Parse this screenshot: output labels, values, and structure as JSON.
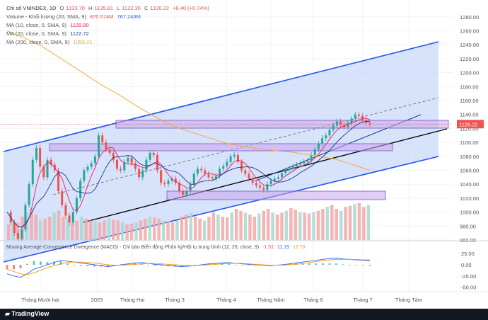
{
  "header": {
    "symbol": "Chỉ số VNINDEX, 1D",
    "o_label": "O",
    "o": "1133.70",
    "h_label": "H",
    "h": "1135.81",
    "l_label": "L",
    "l": "1122.35",
    "c_label": "C",
    "c": "1126.22",
    "change": "+8.40 (+0.74%)"
  },
  "indicators": {
    "volume": {
      "label": "Volume - Khối lượng (20, SMA, 9)",
      "v1": "870.574M",
      "v2": "767.243M"
    },
    "ma10": {
      "label": "MA (10, close, 0, SMA, 9)",
      "value": "1129.80"
    },
    "ma20": {
      "label": "MA (20, close, 0, SMA, 9)",
      "value": "1122.72"
    },
    "ma200": {
      "label": "MA (200, close, 0, SMA, 9)",
      "value": "1059.21"
    }
  },
  "macd": {
    "label": "Moving Average Convergence Divergence (MACD) - Chỉ báo Biến động Phân kỳ/Hội tụ trung bình (12, 26, close, 9)",
    "v1": "-1.51",
    "v2": "11.19",
    "v3": "12.70"
  },
  "branding": {
    "text": "TradingView"
  },
  "colors": {
    "up": "#26a69a",
    "down": "#ef5350",
    "ma10": "#e91e63",
    "ma20": "#1e3a8a",
    "ma200": "#f7a93b",
    "channel": "#1e56f0",
    "zone": "#c9a6ec"
  },
  "chart_data": {
    "type": "candlestick",
    "title": "Chỉ số VNINDEX, 1D",
    "ylim": [
      960,
      1290
    ],
    "y_ticks": [
      "960.00",
      "980.00",
      "1000.00",
      "1020.00",
      "1040.00",
      "1060.00",
      "1080.00",
      "1100.00",
      "1120.00",
      "1140.00",
      "1160.00",
      "1180.00",
      "1200.00",
      "1220.00",
      "1240.00",
      "1260.00",
      "1280.00"
    ],
    "x_ticks": [
      "Tháng Mười hai",
      "2023",
      "Tháng Hai",
      "Tháng 3",
      "Tháng 4",
      "Tháng Năm",
      "Tháng 6",
      "Tháng 7",
      "Tháng Tám"
    ],
    "last_price": "1126.22",
    "close_path": [
      1000,
      985,
      970,
      962,
      975,
      1010,
      1040,
      1075,
      1092,
      1065,
      1050,
      1075,
      1068,
      1060,
      1030,
      1010,
      995,
      985,
      1000,
      1020,
      1045,
      1060,
      1065,
      1070,
      1080,
      1110,
      1100,
      1090,
      1085,
      1075,
      1062,
      1060,
      1072,
      1078,
      1070,
      1062,
      1050,
      1060,
      1075,
      1085,
      1082,
      1060,
      1042,
      1040,
      1045,
      1048,
      1042,
      1030,
      1025,
      1030,
      1040,
      1055,
      1062,
      1060,
      1055,
      1050,
      1048,
      1052,
      1062,
      1066,
      1072,
      1080,
      1082,
      1072,
      1060,
      1055,
      1048,
      1042,
      1038,
      1035,
      1032,
      1040,
      1045,
      1048,
      1050,
      1056,
      1060,
      1062,
      1066,
      1068,
      1070,
      1072,
      1074,
      1082,
      1090,
      1098,
      1106,
      1110,
      1118,
      1124,
      1130,
      1125,
      1122,
      1128,
      1134,
      1140,
      1138,
      1132,
      1128,
      1126
    ],
    "ma200_path": [
      1260,
      1255,
      1250,
      1244,
      1238,
      1230,
      1222,
      1214,
      1206,
      1198,
      1190,
      1182,
      1175,
      1168,
      1160,
      1152,
      1145,
      1138,
      1131,
      1125,
      1120,
      1116,
      1112,
      1108,
      1104,
      1100,
      1097,
      1095,
      1093,
      1091,
      1090,
      1088,
      1087,
      1086,
      1084,
      1082,
      1080,
      1078,
      1076,
      1072,
      1068,
      1064,
      1060
    ],
    "macd_ylim": [
      -60,
      30
    ],
    "macd_ticks": [
      "25.00",
      "0.00",
      "-25.00",
      "-50.00"
    ],
    "volume_path": [
      0.4,
      0.5,
      0.45,
      0.6,
      0.7,
      0.8,
      0.65,
      0.5,
      0.55,
      0.6,
      0.7,
      0.75,
      0.6,
      0.55,
      0.45,
      0.5,
      0.6,
      0.55,
      0.5,
      0.48,
      0.45,
      0.5,
      0.55,
      0.52,
      0.5,
      0.45,
      0.4,
      0.42,
      0.45,
      0.5,
      0.55,
      0.6,
      0.58,
      0.55,
      0.5,
      0.48,
      0.45,
      0.5,
      0.6,
      0.65,
      0.7,
      0.6,
      0.55,
      0.5,
      0.6,
      0.7,
      0.65,
      0.6,
      0.58,
      0.7,
      0.8,
      0.75,
      0.7,
      0.65,
      0.6,
      0.68,
      0.75,
      0.8,
      0.7,
      0.65,
      0.7,
      0.75,
      0.82,
      0.78,
      0.72,
      0.7,
      0.68,
      0.72,
      0.75,
      0.8,
      0.85,
      0.9,
      0.8,
      0.75,
      0.85,
      0.88,
      0.92,
      0.95,
      0.85,
      0.9
    ],
    "macd_path": [
      -20,
      -25,
      -28,
      -20,
      -10,
      -5,
      0,
      5,
      10,
      8,
      6,
      4,
      2,
      0,
      -2,
      -4,
      -2,
      0,
      2,
      4,
      5,
      3,
      1,
      0,
      -2,
      -3,
      -4,
      -3,
      -2,
      0,
      2,
      3,
      4,
      5,
      3,
      2,
      1,
      0,
      -1,
      -2,
      -1,
      0,
      2,
      4,
      6,
      8,
      10,
      12,
      14,
      15,
      13,
      12,
      11,
      10,
      9
    ],
    "signal_path": [
      -10,
      -15,
      -20,
      -22,
      -18,
      -12,
      -6,
      -2,
      2,
      5,
      6,
      6,
      5,
      4,
      2,
      0,
      -1,
      -1,
      0,
      1,
      2,
      3,
      3,
      2,
      1,
      0,
      -1,
      -2,
      -2,
      -1,
      0,
      1,
      2,
      3,
      3,
      3,
      2,
      1,
      0,
      -1,
      -1,
      -1,
      0,
      1,
      3,
      5,
      7,
      9,
      11,
      12,
      12,
      12,
      12,
      11,
      11
    ]
  }
}
